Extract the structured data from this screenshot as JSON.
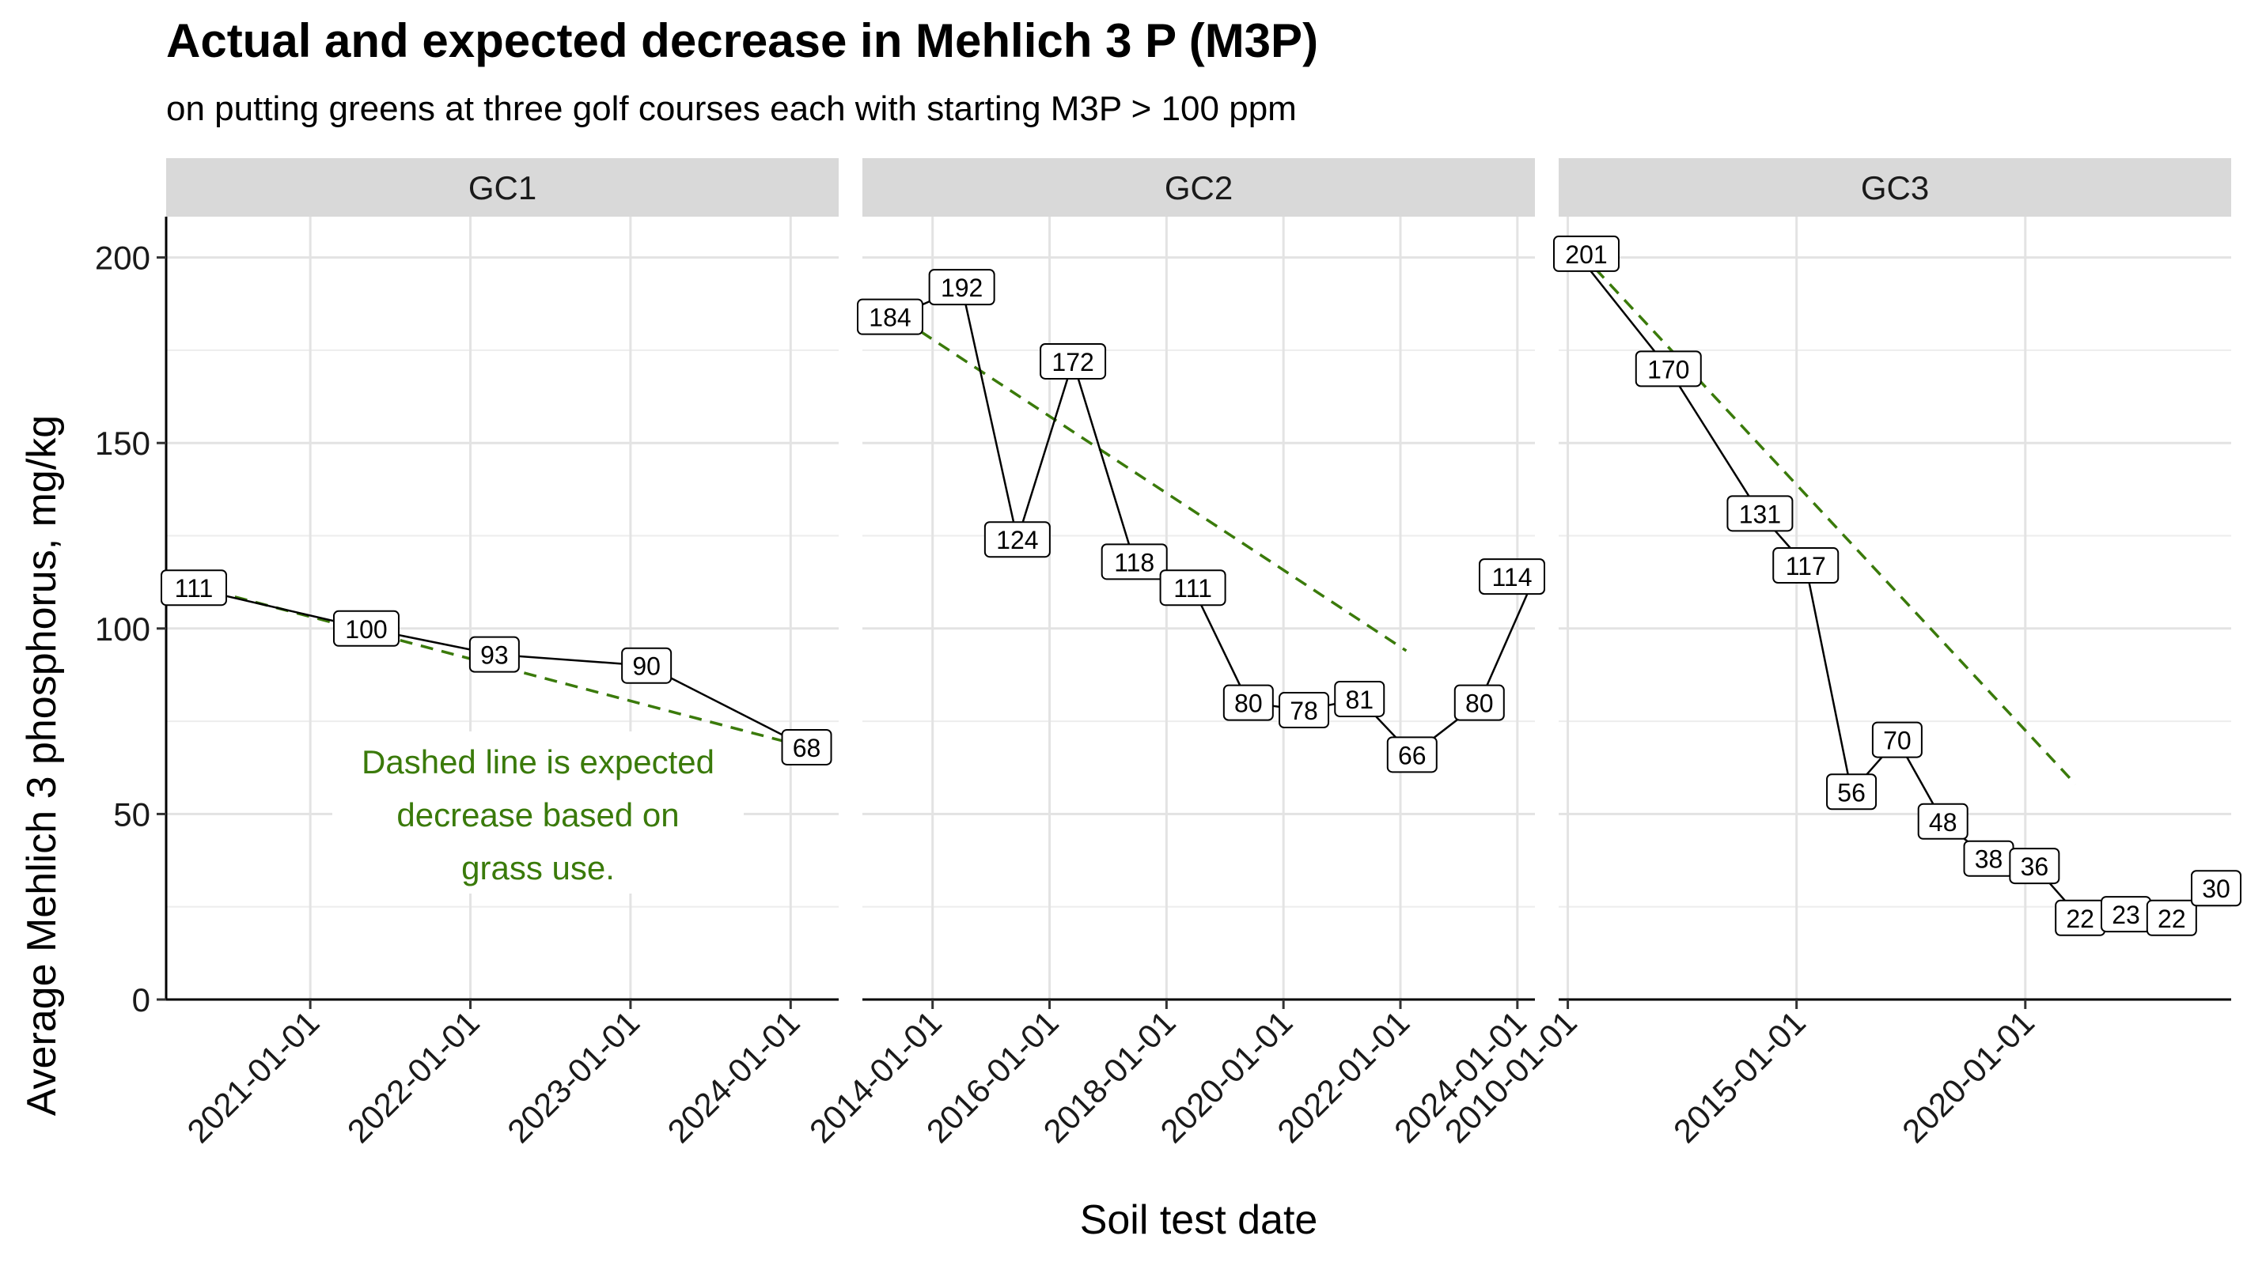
{
  "chart_data": {
    "type": "line",
    "title": "Actual and expected decrease in Mehlich 3 P (M3P)",
    "subtitle": "on putting greens at three golf courses each with starting M3P > 100 ppm",
    "xlabel": "Soil test date",
    "ylabel": "Average Mehlich 3 phosphorus, mg/kg",
    "ylim": [
      0,
      211
    ],
    "y_ticks": [
      0,
      50,
      100,
      150,
      200
    ],
    "annotation": "Dashed line is expected decrease based on grass use.",
    "annotation_lines": [
      "Dashed line is expected",
      "decrease based on",
      "grass use."
    ],
    "colors": {
      "actual": "#000000",
      "expected": "#3a7a0a",
      "annotation": "#3a7a0a",
      "strip": "#d9d9d9",
      "grid": "#e3e3e3"
    },
    "panels": [
      {
        "name": "GC1",
        "x_range": [
          2020.1,
          2024.3
        ],
        "x_ticks": [
          {
            "value": 2021.0,
            "label": "2021-01-01"
          },
          {
            "value": 2022.0,
            "label": "2022-01-01"
          },
          {
            "value": 2023.0,
            "label": "2023-01-01"
          },
          {
            "value": 2024.0,
            "label": "2024-01-01"
          }
        ],
        "actual": [
          {
            "x": 2020.25,
            "y": 111
          },
          {
            "x": 2021.35,
            "y": 100
          },
          {
            "x": 2022.15,
            "y": 93
          },
          {
            "x": 2023.1,
            "y": 90
          },
          {
            "x": 2024.1,
            "y": 68
          }
        ],
        "expected": [
          {
            "x": 2020.4,
            "y": 110
          },
          {
            "x": 2024.1,
            "y": 68
          }
        ]
      },
      {
        "name": "GC2",
        "x_range": [
          2012.8,
          2024.3
        ],
        "x_ticks": [
          {
            "value": 2014.0,
            "label": "2014-01-01"
          },
          {
            "value": 2016.0,
            "label": "2016-01-01"
          },
          {
            "value": 2018.0,
            "label": "2018-01-01"
          },
          {
            "value": 2020.0,
            "label": "2020-01-01"
          },
          {
            "value": 2022.0,
            "label": "2022-01-01"
          },
          {
            "value": 2024.0,
            "label": "2024-01-01"
          }
        ],
        "actual": [
          {
            "x": 2013.35,
            "y": 184
          },
          {
            "x": 2014.5,
            "y": 192
          },
          {
            "x": 2015.45,
            "y": 124
          },
          {
            "x": 2016.4,
            "y": 172
          },
          {
            "x": 2017.45,
            "y": 118
          },
          {
            "x": 2018.45,
            "y": 111
          },
          {
            "x": 2019.4,
            "y": 80
          },
          {
            "x": 2020.35,
            "y": 78
          },
          {
            "x": 2021.3,
            "y": 81
          },
          {
            "x": 2022.2,
            "y": 66
          },
          {
            "x": 2023.35,
            "y": 80
          },
          {
            "x": 2024.3,
            "y": 114
          }
        ],
        "expected": [
          {
            "x": 2013.8,
            "y": 180
          },
          {
            "x": 2022.1,
            "y": 94
          }
        ]
      },
      {
        "name": "GC3",
        "x_range": [
          2009.8,
          2024.5
        ],
        "x_ticks": [
          {
            "value": 2010.0,
            "label": "2010-01-01"
          },
          {
            "value": 2015.0,
            "label": "2015-01-01"
          },
          {
            "value": 2020.0,
            "label": "2020-01-01"
          }
        ],
        "actual": [
          {
            "x": 2010.2,
            "y": 201
          },
          {
            "x": 2012.2,
            "y": 170
          },
          {
            "x": 2014.2,
            "y": 131
          },
          {
            "x": 2015.2,
            "y": 117
          },
          {
            "x": 2016.2,
            "y": 56
          },
          {
            "x": 2017.2,
            "y": 70
          },
          {
            "x": 2018.2,
            "y": 48
          },
          {
            "x": 2019.2,
            "y": 38
          },
          {
            "x": 2020.2,
            "y": 36
          },
          {
            "x": 2021.2,
            "y": 22
          },
          {
            "x": 2022.2,
            "y": 23
          },
          {
            "x": 2023.2,
            "y": 22
          },
          {
            "x": 2024.2,
            "y": 30
          }
        ],
        "expected": [
          {
            "x": 2010.6,
            "y": 197
          },
          {
            "x": 2021.1,
            "y": 58
          }
        ]
      }
    ]
  }
}
